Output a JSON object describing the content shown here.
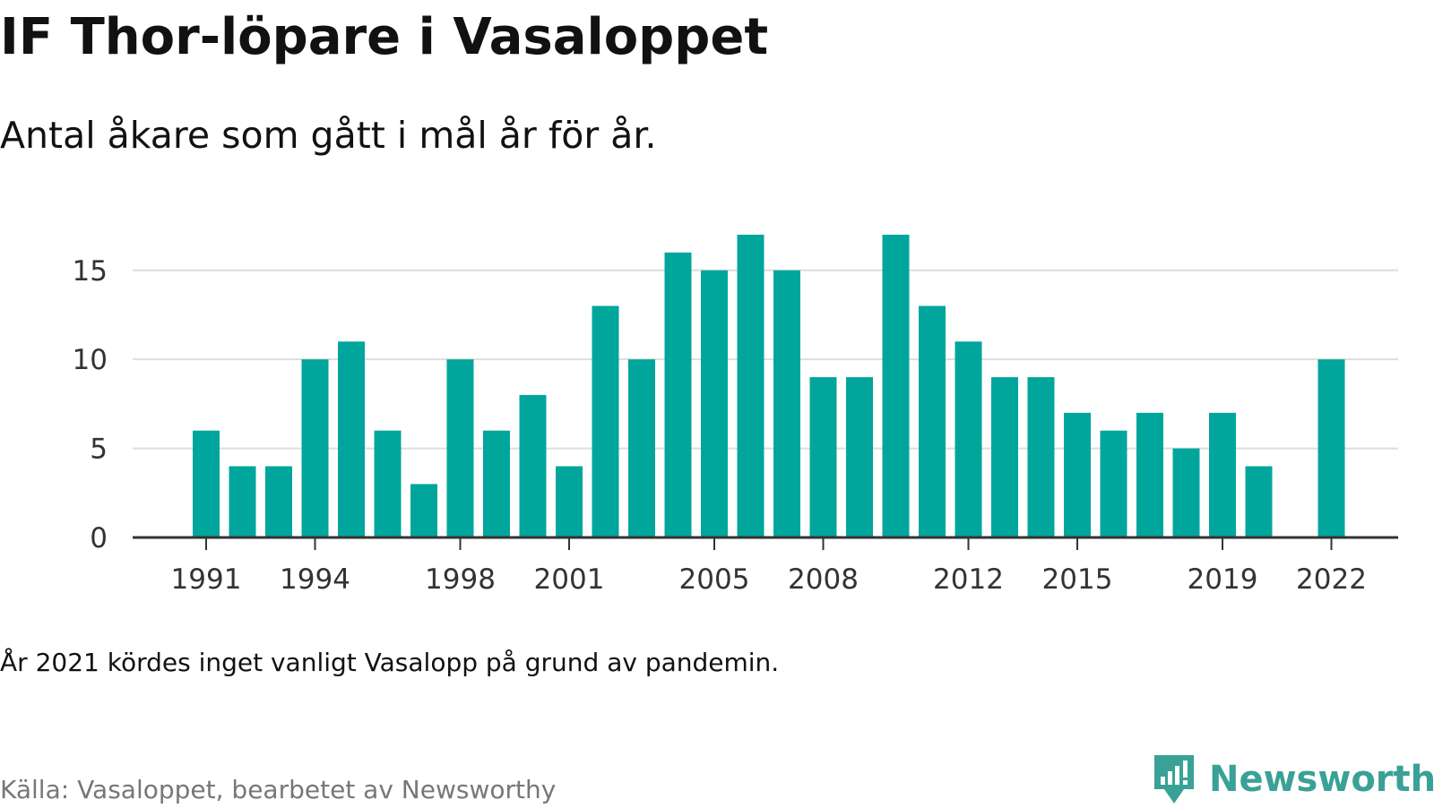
{
  "title": "IF Thor-löpare i Vasaloppet",
  "subtitle": "Antal åkare som gått i mål år för år.",
  "note": "År 2021 kördes inget vanligt Vasalopp på grund av pandemin.",
  "source": "Källa: Vasaloppet, bearbetet av Newsworthy",
  "brand": {
    "name": "Newsworthy",
    "icon": "newsworthy-logo-icon"
  },
  "colors": {
    "bar": "#00a69c",
    "grid": "#dddddd",
    "axis": "#333333",
    "brand": "#3aa197"
  },
  "chart_data": {
    "type": "bar",
    "title": "IF Thor-löpare i Vasaloppet",
    "subtitle": "Antal åkare som gått i mål år för år.",
    "xlabel": "",
    "ylabel": "",
    "x": [
      1991,
      1992,
      1993,
      1994,
      1995,
      1996,
      1997,
      1998,
      1999,
      2000,
      2001,
      2002,
      2003,
      2004,
      2005,
      2006,
      2007,
      2008,
      2009,
      2010,
      2011,
      2012,
      2013,
      2014,
      2015,
      2016,
      2017,
      2018,
      2019,
      2020,
      2021,
      2022
    ],
    "values": [
      6,
      4,
      4,
      10,
      11,
      6,
      3,
      10,
      6,
      8,
      4,
      13,
      10,
      16,
      15,
      17,
      15,
      9,
      9,
      17,
      13,
      11,
      9,
      9,
      7,
      6,
      7,
      5,
      7,
      4,
      null,
      10
    ],
    "x_tick_labels": [
      "1991",
      "1994",
      "1998",
      "2001",
      "2005",
      "2008",
      "2012",
      "2015",
      "2019",
      "2022"
    ],
    "y_ticks": [
      0,
      5,
      10,
      15
    ],
    "ylim": [
      0,
      17
    ],
    "grid": true,
    "legend": "none"
  }
}
